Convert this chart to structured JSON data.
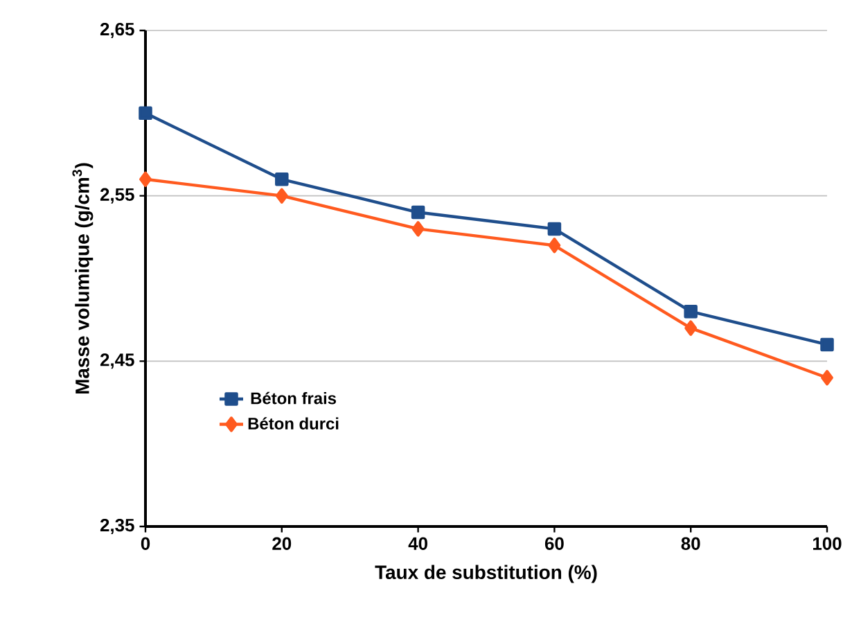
{
  "chart_data": {
    "type": "line",
    "xlabel": "Taux de substitution (%)",
    "ylabel": "Masse volumique (g/cm$^{3}$)",
    "x": [
      0,
      20,
      40,
      60,
      80,
      100
    ],
    "series": [
      {
        "name": "Béton frais",
        "color": "#1f4e8c",
        "marker": "square",
        "values": [
          2.6,
          2.56,
          2.54,
          2.53,
          2.48,
          2.46
        ]
      },
      {
        "name": "Béton durci",
        "color": "#ff5a1f",
        "marker": "diamond",
        "values": [
          2.56,
          2.55,
          2.53,
          2.52,
          2.47,
          2.44
        ]
      }
    ],
    "xlim": [
      0,
      100
    ],
    "xticks": [
      0,
      20,
      40,
      60,
      80,
      100
    ],
    "ylim": [
      2.35,
      2.65
    ],
    "yticks": [
      {
        "value": 2.35,
        "label": "2,35"
      },
      {
        "value": 2.45,
        "label": "2,45"
      },
      {
        "value": 2.55,
        "label": "2,55"
      },
      {
        "value": 2.65,
        "label": "2,65"
      }
    ],
    "grid": "y",
    "legend": "bottom left"
  }
}
